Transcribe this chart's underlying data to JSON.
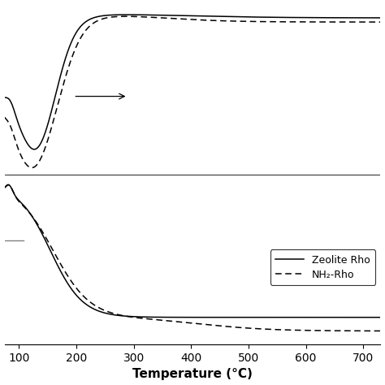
{
  "xlabel": "Temperature (°C)",
  "xlim": [
    75,
    730
  ],
  "xticks": [
    100,
    200,
    300,
    400,
    500,
    600,
    700
  ],
  "background_color": "#ffffff",
  "legend_labels": [
    "Zeolite Rho",
    "NH₂-Rho"
  ]
}
